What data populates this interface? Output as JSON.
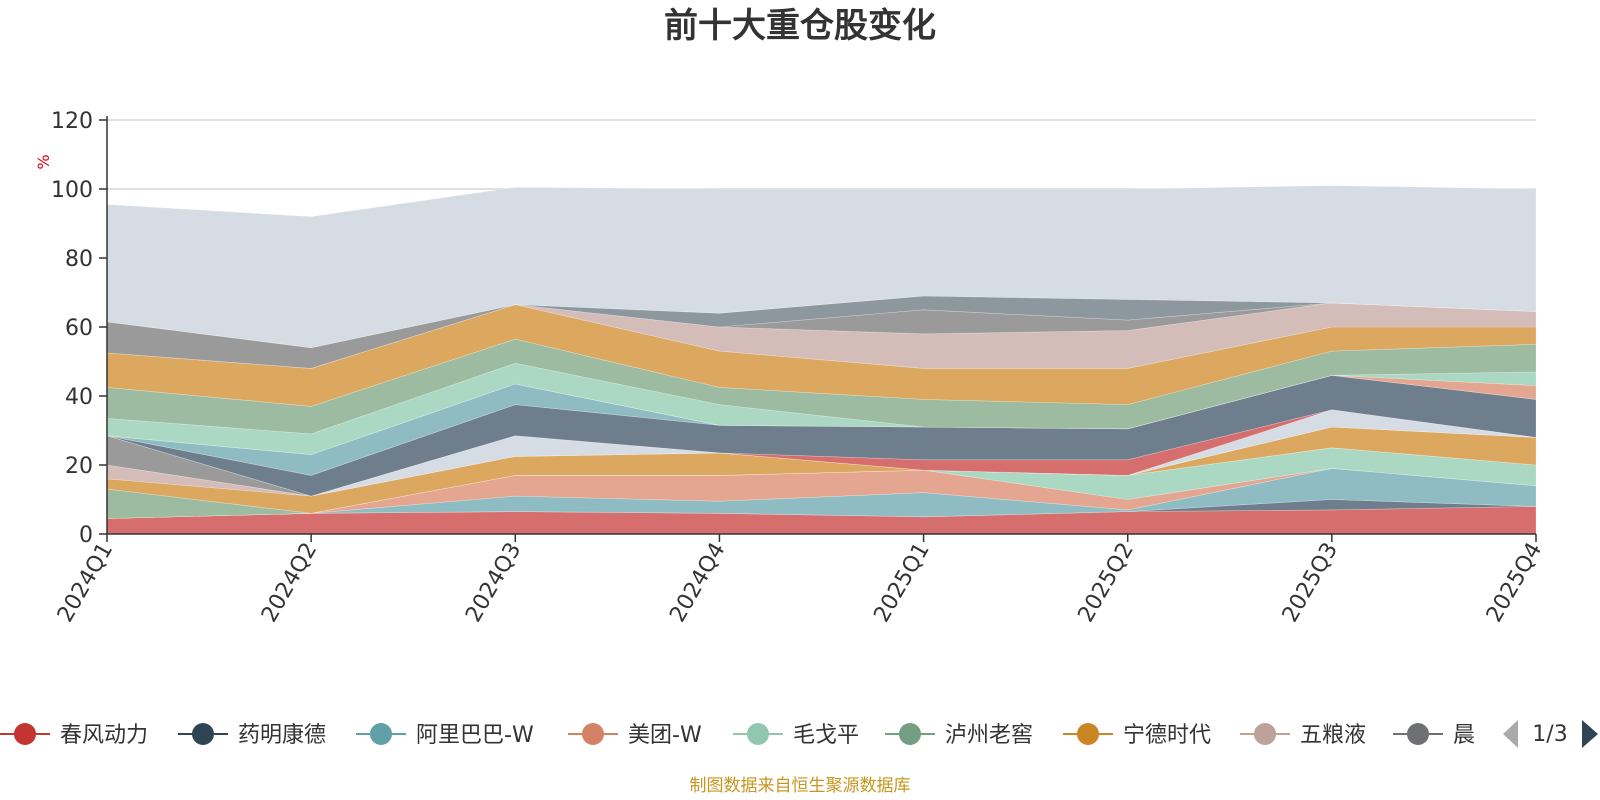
{
  "chart_data": {
    "type": "area",
    "title": "前十大重仓股变化",
    "ylabel": "%",
    "ylim": [
      0,
      120
    ],
    "yticks": [
      0,
      20,
      40,
      60,
      80,
      100,
      120
    ],
    "grid": true,
    "legend_position": "bottom",
    "categories": [
      "2024Q1",
      "2024Q2",
      "2024Q3",
      "2024Q4",
      "2025Q1",
      "2025Q2",
      "2025Q3",
      "2025Q4"
    ],
    "series": [
      {
        "name": "春风动力",
        "color": "#d66e6e",
        "values": [
          4.5,
          6.0,
          6.5,
          6.0,
          5.0,
          6.5,
          7.0,
          8.0
        ]
      },
      {
        "name": "",
        "color": "#6f7e8c",
        "values": [
          0,
          0,
          0,
          0,
          0,
          0,
          3.0,
          0
        ]
      },
      {
        "name": "阿里巴巴-W",
        "color": "#8fbcc3",
        "values": [
          0,
          0,
          4.5,
          3.5,
          7.0,
          0.5,
          9.0,
          6.0
        ]
      },
      {
        "name": "美团-W",
        "color": "#e4a690",
        "values": [
          0,
          0,
          6.0,
          7.5,
          6.5,
          3.0,
          0,
          0
        ]
      },
      {
        "name": "毛戈平",
        "color": "#aad8c3",
        "values": [
          0,
          0,
          0,
          0,
          0,
          7.0,
          6.0,
          6.0
        ]
      },
      {
        "name": "泸州老窖",
        "color": "#9cbba0",
        "values": [
          8.5,
          0,
          0,
          0,
          0,
          0,
          0,
          0
        ]
      },
      {
        "name": "宁德时代",
        "color": "#dca860",
        "values": [
          3.0,
          5.0,
          5.5,
          6.5,
          0,
          0,
          6.0,
          8.0
        ]
      },
      {
        "name": "",
        "color": "#d4bcb8",
        "values": [
          4.0,
          0,
          0,
          0,
          0,
          0,
          0,
          0
        ]
      },
      {
        "name": "",
        "color": "#9a9a9a",
        "values": [
          8.5,
          0,
          0,
          0,
          0,
          0,
          0,
          0
        ]
      },
      {
        "name": "",
        "color": "#d6dce4",
        "values": [
          0,
          0,
          6.0,
          0,
          0,
          0,
          5.0,
          0
        ]
      },
      {
        "name": "",
        "color": "#d66e6e",
        "values": [
          0,
          0,
          0,
          0,
          3.0,
          4.5,
          0,
          0
        ]
      },
      {
        "name": "药明康德",
        "color": "#6f7e8c",
        "values": [
          0,
          6.0,
          9.0,
          8.0,
          9.5,
          9.0,
          10.0,
          11.0
        ]
      },
      {
        "name": "",
        "color": "#8fbcc3",
        "values": [
          0,
          6.0,
          6.0,
          0,
          0,
          0,
          0,
          0
        ]
      },
      {
        "name": "",
        "color": "#e4a690",
        "values": [
          0,
          0,
          0,
          0,
          0,
          0,
          0,
          4.0
        ]
      },
      {
        "name": "",
        "color": "#aad8c3",
        "values": [
          5.0,
          6.0,
          6.0,
          6.0,
          0,
          0,
          0,
          4.0
        ]
      },
      {
        "name": "",
        "color": "#9cbba0",
        "values": [
          9.0,
          8.0,
          7.0,
          5.0,
          8.0,
          7.0,
          7.0,
          8.0
        ]
      },
      {
        "name": "",
        "color": "#dca860",
        "values": [
          10.0,
          11.0,
          10.0,
          10.5,
          9.0,
          10.5,
          7.0,
          5.0
        ]
      },
      {
        "name": "五粮液",
        "color": "#d4bcb8",
        "values": [
          0,
          0,
          0,
          7.0,
          10.0,
          11.0,
          7.0,
          4.5
        ]
      },
      {
        "name": "",
        "color": "#9a9a9a",
        "values": [
          9.0,
          6.0,
          0,
          0,
          7.0,
          3.0,
          0,
          0
        ]
      },
      {
        "name": "",
        "color": "#8c979e",
        "values": [
          0,
          0,
          0,
          4.0,
          4.0,
          6.0,
          0,
          0
        ]
      },
      {
        "name": "",
        "color": "#d6dce4",
        "values": [
          34.0,
          38.0,
          34.0,
          36.0,
          31.0,
          32.0,
          34.0,
          35.5
        ]
      }
    ]
  },
  "legend": {
    "items": [
      {
        "label": "春风动力",
        "color": "#c23531"
      },
      {
        "label": "药明康德",
        "color": "#2f4554"
      },
      {
        "label": "阿里巴巴-W",
        "color": "#61a0a8"
      },
      {
        "label": "美团-W",
        "color": "#d48265"
      },
      {
        "label": "毛戈平",
        "color": "#91c7ae"
      },
      {
        "label": "泸州老窖",
        "color": "#749f83"
      },
      {
        "label": "宁德时代",
        "color": "#ca8622"
      },
      {
        "label": "五粮液",
        "color": "#bda29a"
      },
      {
        "label": "晨",
        "color": "#6e7074"
      }
    ],
    "page_text": "1/3",
    "prev_icon": "triangle-left-icon",
    "next_icon": "triangle-right-icon"
  },
  "source_note": "制图数据来自恒生聚源数据库"
}
